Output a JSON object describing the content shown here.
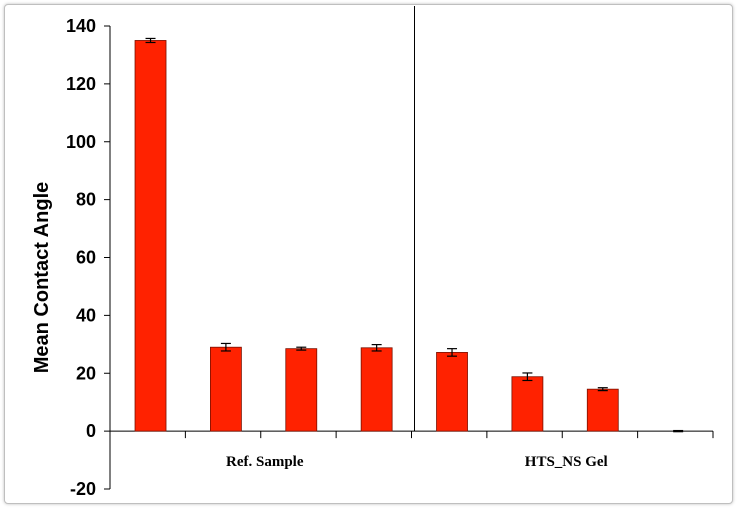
{
  "chart_data": {
    "type": "bar",
    "ylabel": "Mean Contact Angle",
    "xlabel": "",
    "ylim": [
      -20,
      140
    ],
    "yticks": [
      -20,
      0,
      20,
      40,
      60,
      80,
      100,
      120,
      140
    ],
    "groups": [
      "Ref. Sample",
      "HTS_NS Gel"
    ],
    "bar_color": "#ff2200",
    "series": [
      {
        "values": [
          135,
          29,
          28.5,
          28.8,
          27.2,
          18.8,
          14.5,
          0
        ],
        "errors": [
          0.7,
          1.3,
          0.5,
          1.1,
          1.3,
          1.3,
          0.5,
          0.2
        ]
      }
    ],
    "grid": false,
    "legend": "none"
  }
}
